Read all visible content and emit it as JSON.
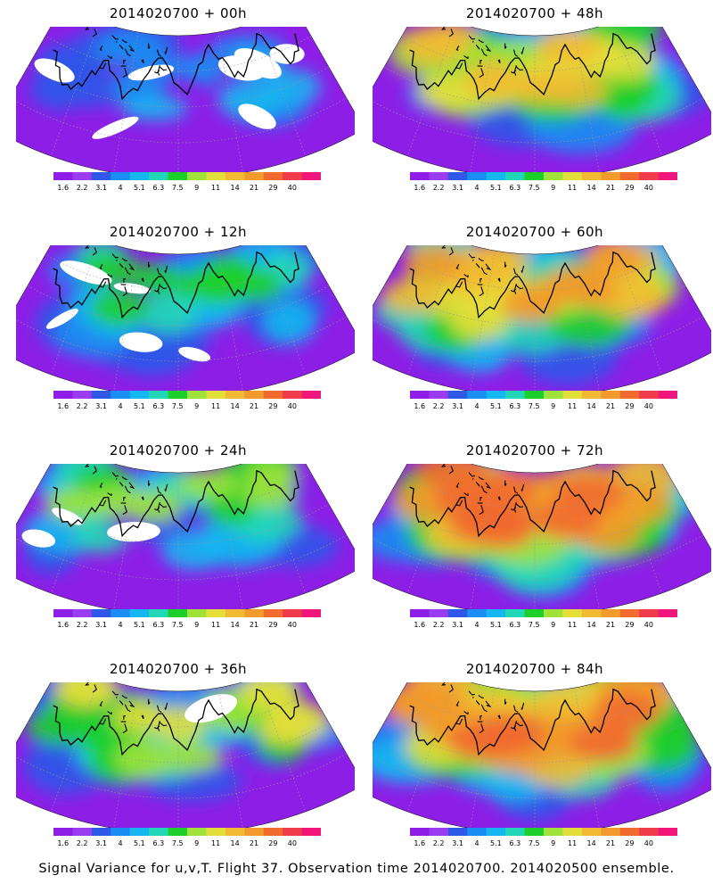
{
  "caption": "Signal Variance for u,v,T. Flight 37. Observation time 2014020700. 2014020500 ensemble.",
  "colorbar": {
    "labels": [
      "1.6",
      "2.2",
      "3.1",
      "4",
      "5.1",
      "6.3",
      "7.5",
      "9",
      "11",
      "14",
      "21",
      "29",
      "40"
    ],
    "colors": [
      "#8d1ee6",
      "#9a3cf0",
      "#2f57e8",
      "#1a8ef2",
      "#16b6f0",
      "#22d7b6",
      "#1ccf2a",
      "#9ee23a",
      "#e4de3a",
      "#f0bb33",
      "#f29a2b",
      "#f16a2e",
      "#ef3b4b",
      "#f0167a"
    ]
  },
  "panels": [
    {
      "title": "2014020700 + 00h",
      "level": 0.1
    },
    {
      "title": "2014020700 + 48h",
      "level": 0.55
    },
    {
      "title": "2014020700 + 12h",
      "level": 0.25
    },
    {
      "title": "2014020700 + 60h",
      "level": 0.65
    },
    {
      "title": "2014020700 + 24h",
      "level": 0.35
    },
    {
      "title": "2014020700 + 72h",
      "level": 0.75
    },
    {
      "title": "2014020700 + 36h",
      "level": 0.45
    },
    {
      "title": "2014020700 + 84h",
      "level": 0.82
    }
  ]
}
